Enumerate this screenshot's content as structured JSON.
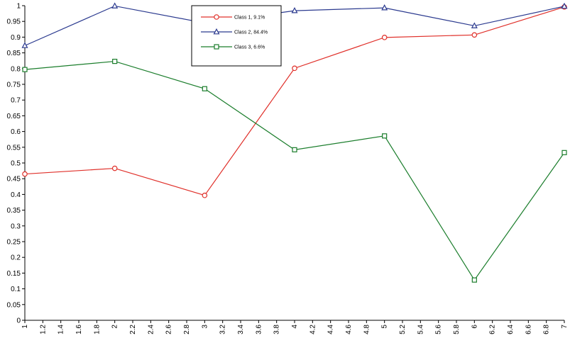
{
  "chart_data": {
    "type": "line",
    "title": "",
    "xlabel": "",
    "ylabel": "",
    "x": [
      1,
      2,
      3,
      4,
      5,
      6,
      7
    ],
    "xlim": [
      1,
      7
    ],
    "ylim": [
      0,
      1
    ],
    "x_ticks": [
      "1",
      "1.2",
      "1.4",
      "1.6",
      "1.8",
      "2",
      "2.2",
      "2.4",
      "2.6",
      "2.8",
      "3",
      "3.2",
      "3.4",
      "3.6",
      "3.8",
      "4",
      "4.2",
      "4.4",
      "4.6",
      "4.8",
      "5",
      "5.2",
      "5.4",
      "5.6",
      "5.8",
      "6",
      "6.2",
      "6.4",
      "6.6",
      "6.8",
      "7"
    ],
    "y_ticks": [
      "0",
      "0.05",
      "0.1",
      "0.15",
      "0.2",
      "0.25",
      "0.3",
      "0.35",
      "0.4",
      "0.45",
      "0.5",
      "0.55",
      "0.6",
      "0.65",
      "0.7",
      "0.75",
      "0.8",
      "0.85",
      "0.9",
      "0.95",
      "1"
    ],
    "grid": false,
    "legend_position": "top-center",
    "series": [
      {
        "name": "Class 1, 9.1%",
        "color": "#e0302a",
        "marker": "circle",
        "values": [
          0.465,
          0.483,
          0.397,
          0.801,
          0.899,
          0.907,
          0.996
        ]
      },
      {
        "name": "Class 2, 84.4%",
        "color": "#2b3a8f",
        "marker": "triangle",
        "values": [
          0.873,
          0.999,
          0.945,
          0.984,
          0.993,
          0.936,
          0.998
        ]
      },
      {
        "name": "Class 3, 6.6%",
        "color": "#1a7d2b",
        "marker": "square",
        "values": [
          0.797,
          0.823,
          0.736,
          0.542,
          0.586,
          0.128,
          0.533
        ]
      }
    ]
  }
}
